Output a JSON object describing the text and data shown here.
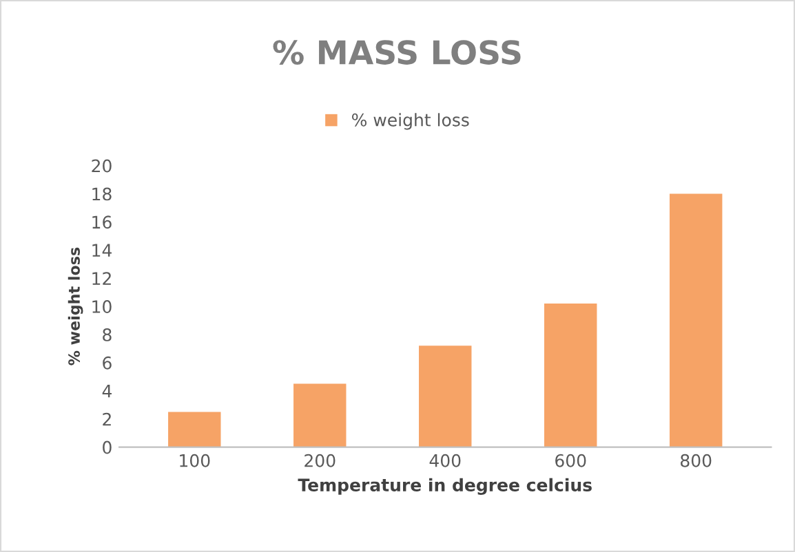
{
  "chart_data": {
    "type": "bar",
    "title": "% MASS LOSS",
    "xlabel": "Temperature in degree celcius",
    "ylabel": "% weight loss",
    "categories": [
      "100",
      "200",
      "400",
      "600",
      "800"
    ],
    "series": [
      {
        "name": "% weight loss",
        "color": "#f6a366",
        "values": [
          2.5,
          4.5,
          7.2,
          10.2,
          18.0
        ]
      }
    ],
    "ylim": [
      0,
      20
    ],
    "yticks": [
      0,
      2,
      4,
      6,
      8,
      10,
      12,
      14,
      16,
      18,
      20
    ],
    "grid": false,
    "legend": "top"
  }
}
